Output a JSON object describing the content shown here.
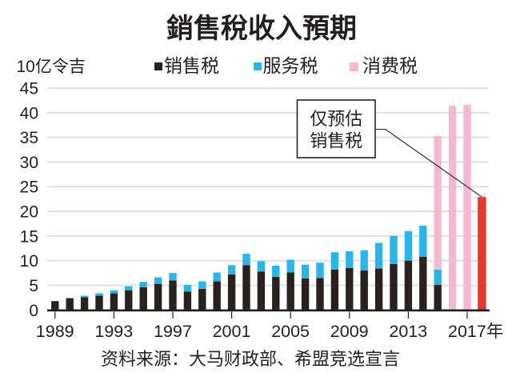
{
  "chart_data": {
    "type": "bar",
    "stacked": true,
    "title": "銷售稅收入預期",
    "ylabel": "10亿令吉",
    "xlabel": "",
    "ylim": [
      0,
      45
    ],
    "yticks": [
      0,
      5,
      10,
      15,
      20,
      25,
      30,
      35,
      40,
      45
    ],
    "ytick_labels": [
      "0",
      "5",
      "10",
      "15",
      "20",
      "25",
      "30",
      "35",
      "40",
      "45"
    ],
    "grid": true,
    "legend_position": "top",
    "categories": [
      1989,
      1990,
      1991,
      1992,
      1993,
      1994,
      1995,
      1996,
      1997,
      1998,
      1999,
      2000,
      2001,
      2002,
      2003,
      2004,
      2005,
      2006,
      2007,
      2008,
      2009,
      2010,
      2011,
      2012,
      2013,
      2014,
      2015,
      2016,
      2017,
      2018
    ],
    "xticks": [
      1989,
      1993,
      1997,
      2001,
      2005,
      2009,
      2013,
      2017
    ],
    "xtick_labels": [
      "1989",
      "1993",
      "1997",
      "2001",
      "2005",
      "2009",
      "2013",
      "2017年"
    ],
    "series": [
      {
        "name": "销售税",
        "color": "#2b2220",
        "values": [
          1.8,
          2.4,
          2.6,
          2.9,
          3.4,
          4.0,
          4.6,
          5.3,
          6.0,
          3.7,
          4.3,
          5.8,
          7.2,
          9.1,
          7.8,
          6.7,
          7.6,
          6.4,
          6.5,
          8.2,
          8.5,
          8.0,
          8.4,
          9.3,
          10.0,
          10.8,
          5.1,
          0,
          0,
          0
        ]
      },
      {
        "name": "服务税",
        "color": "#2bb4e6",
        "values": [
          0,
          0,
          0.3,
          0.5,
          0.6,
          0.8,
          1.1,
          1.3,
          1.5,
          1.4,
          1.5,
          1.8,
          1.9,
          2.3,
          2.1,
          2.3,
          2.6,
          2.8,
          3.1,
          3.5,
          3.4,
          4.1,
          5.2,
          5.7,
          6.0,
          6.3,
          3.1,
          0,
          0,
          0
        ]
      },
      {
        "name": "消费税",
        "color": "#f4b8d2",
        "values": [
          0,
          0,
          0,
          0,
          0,
          0,
          0,
          0,
          0,
          0,
          0,
          0,
          0,
          0,
          0,
          0,
          0,
          0,
          0,
          0,
          0,
          0,
          0,
          0,
          0,
          0,
          27.1,
          41.4,
          41.6,
          0
        ]
      }
    ],
    "estimate_series": {
      "color": "#e43b2e",
      "values": [
        0,
        0,
        0,
        0,
        0,
        0,
        0,
        0,
        0,
        0,
        0,
        0,
        0,
        0,
        0,
        0,
        0,
        0,
        0,
        0,
        0,
        0,
        0,
        0,
        0,
        0,
        0,
        0,
        0,
        22.9
      ]
    },
    "annotation": {
      "lines": [
        "仅预估",
        "销售税"
      ],
      "target": 2018
    },
    "source": "资料来源：大马财政部、希盟竞选宣言"
  }
}
